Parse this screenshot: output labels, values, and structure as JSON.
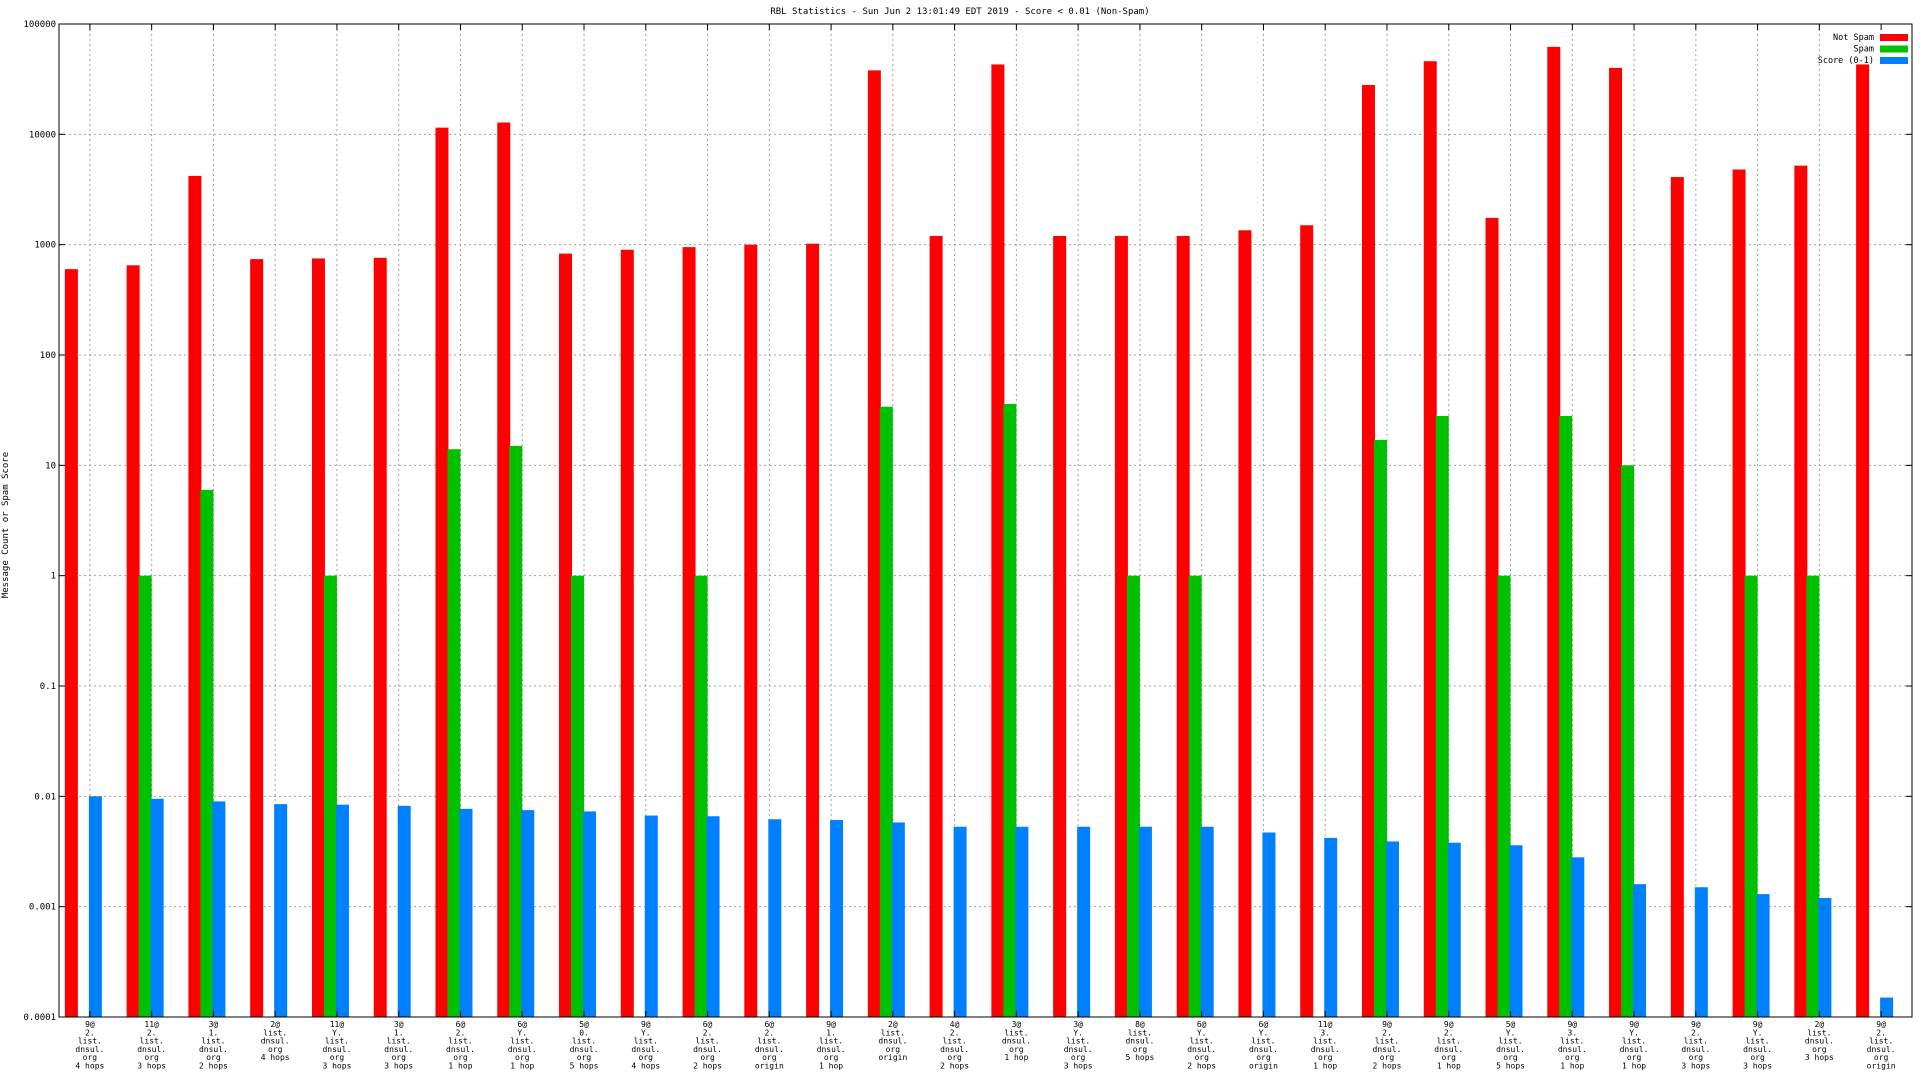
{
  "chart_data": {
    "type": "bar",
    "title": "RBL Statistics - Sun Jun  2 13:01:49 EDT 2019 - Score < 0.01 (Non-Spam)",
    "xlabel": "",
    "ylabel": "Message Count or Spam Score",
    "y_scale": "log",
    "ylim": [
      0.0001,
      100000
    ],
    "y_ticks": [
      {
        "value": 0.0001,
        "label": "0.0001"
      },
      {
        "value": 0.001,
        "label": "0.001"
      },
      {
        "value": 0.01,
        "label": "0.01"
      },
      {
        "value": 0.1,
        "label": "0.1"
      },
      {
        "value": 1,
        "label": "1"
      },
      {
        "value": 10,
        "label": "10"
      },
      {
        "value": 100,
        "label": "100"
      },
      {
        "value": 1000,
        "label": "1000"
      },
      {
        "value": 10000,
        "label": "10000"
      },
      {
        "value": 100000,
        "label": "100000"
      }
    ],
    "grid": true,
    "legend_position": "top-right",
    "categories": [
      [
        "9@",
        "2.",
        "list.",
        "dnsul.",
        "org",
        "4 hops"
      ],
      [
        "11@",
        "2.",
        "list.",
        "dnsul.",
        "org",
        "3 hops"
      ],
      [
        "3@",
        "1.",
        "list.",
        "dnsul.",
        "org",
        "2 hops"
      ],
      [
        "2@",
        "list.",
        "dnsul.",
        "org",
        "4 hops"
      ],
      [
        "11@",
        "Y.",
        "list.",
        "dnsul.",
        "org",
        "3 hops"
      ],
      [
        "3@",
        "1.",
        "list.",
        "dnsul.",
        "org",
        "3 hops"
      ],
      [
        "6@",
        "2.",
        "list.",
        "dnsul.",
        "org",
        "1 hop"
      ],
      [
        "6@",
        "Y.",
        "list.",
        "dnsul.",
        "org",
        "1 hop"
      ],
      [
        "5@",
        "0.",
        "list.",
        "dnsul.",
        "org",
        "5 hops"
      ],
      [
        "9@",
        "Y.",
        "list.",
        "dnsul.",
        "org",
        "4 hops"
      ],
      [
        "6@",
        "2.",
        "list.",
        "dnsul.",
        "org",
        "2 hops"
      ],
      [
        "6@",
        "2.",
        "list.",
        "dnsul.",
        "org",
        "origin"
      ],
      [
        "9@",
        "1.",
        "list.",
        "dnsul.",
        "org",
        "1 hop"
      ],
      [
        "2@",
        "list.",
        "dnsul.",
        "org",
        "origin"
      ],
      [
        "4@",
        "2.",
        "list.",
        "dnsul.",
        "org",
        "2 hops"
      ],
      [
        "3@",
        "list.",
        "dnsul.",
        "org",
        "1 hop"
      ],
      [
        "3@",
        "Y.",
        "list.",
        "dnsul.",
        "org",
        "3 hops"
      ],
      [
        "8@",
        "list.",
        "dnsul.",
        "org",
        "5 hops"
      ],
      [
        "6@",
        "Y.",
        "list.",
        "dnsul.",
        "org",
        "2 hops"
      ],
      [
        "6@",
        "Y.",
        "list.",
        "dnsul.",
        "org",
        "origin"
      ],
      [
        "11@",
        "3.",
        "list.",
        "dnsul.",
        "org",
        "1 hop"
      ],
      [
        "9@",
        "2.",
        "list.",
        "dnsul.",
        "org",
        "2 hops"
      ],
      [
        "9@",
        "2.",
        "list.",
        "dnsul.",
        "org",
        "1 hop"
      ],
      [
        "5@",
        "Y.",
        "list.",
        "dnsul.",
        "org",
        "5 hops"
      ],
      [
        "9@",
        "3.",
        "list.",
        "dnsul.",
        "org",
        "1 hop"
      ],
      [
        "9@",
        "Y.",
        "list.",
        "dnsul.",
        "org",
        "1 hop"
      ],
      [
        "9@",
        "2.",
        "list.",
        "dnsul.",
        "org",
        "3 hops"
      ],
      [
        "9@",
        "Y.",
        "list.",
        "dnsul.",
        "org",
        "3 hops"
      ],
      [
        "2@",
        "list.",
        "dnsul.",
        "org",
        "3 hops"
      ],
      [
        "9@",
        "2.",
        "list.",
        "dnsul.",
        "org",
        "origin"
      ]
    ],
    "series": [
      {
        "name": "Not Spam",
        "color": "#ff0000",
        "values": [
          600,
          650,
          4200,
          740,
          750,
          760,
          11500,
          12800,
          830,
          900,
          950,
          1000,
          1020,
          38000,
          1200,
          43000,
          1200,
          1200,
          1200,
          1350,
          1500,
          28000,
          46000,
          1750,
          62000,
          40000,
          4100,
          4800,
          5200,
          43000
        ]
      },
      {
        "name": "Spam",
        "color": "#00c000",
        "values": [
          null,
          1,
          6,
          null,
          1,
          null,
          14,
          15,
          1,
          null,
          1,
          null,
          null,
          34,
          null,
          36,
          null,
          1,
          1,
          null,
          null,
          17,
          28,
          1,
          28,
          10,
          null,
          1,
          1,
          null
        ]
      },
      {
        "name": "Score (0-1)",
        "color": "#0080ff",
        "values": [
          0.01,
          0.0095,
          0.009,
          0.0085,
          0.0084,
          0.0082,
          0.0077,
          0.0075,
          0.0073,
          0.0067,
          0.0066,
          0.0062,
          0.0061,
          0.0058,
          0.0053,
          0.0053,
          0.0053,
          0.0053,
          0.0053,
          0.0047,
          0.0042,
          0.0039,
          0.0038,
          0.0036,
          0.0028,
          0.0016,
          0.0015,
          0.0013,
          0.0012,
          0.00015
        ]
      }
    ]
  }
}
